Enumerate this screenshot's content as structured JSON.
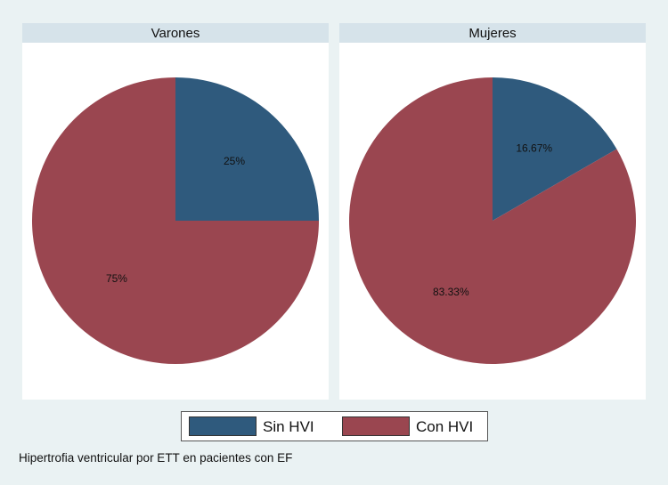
{
  "chart_data": [
    {
      "type": "pie",
      "title": "Varones",
      "series": [
        {
          "name": "Sin HVI",
          "value": 25,
          "label": "25%",
          "color": "#2f5a7d"
        },
        {
          "name": "Con HVI",
          "value": 75,
          "label": "75%",
          "color": "#9a4650"
        }
      ]
    },
    {
      "type": "pie",
      "title": "Mujeres",
      "series": [
        {
          "name": "Sin HVI",
          "value": 16.67,
          "label": "16.67%",
          "color": "#2f5a7d"
        },
        {
          "name": "Con HVI",
          "value": 83.33,
          "label": "83.33%",
          "color": "#9a4650"
        }
      ]
    }
  ],
  "legend": [
    {
      "label": "Sin HVI",
      "color": "#2f5a7d"
    },
    {
      "label": "Con HVI",
      "color": "#9a4650"
    }
  ],
  "note": "Hipertrofia ventricular por ETT en pacientes con EF"
}
